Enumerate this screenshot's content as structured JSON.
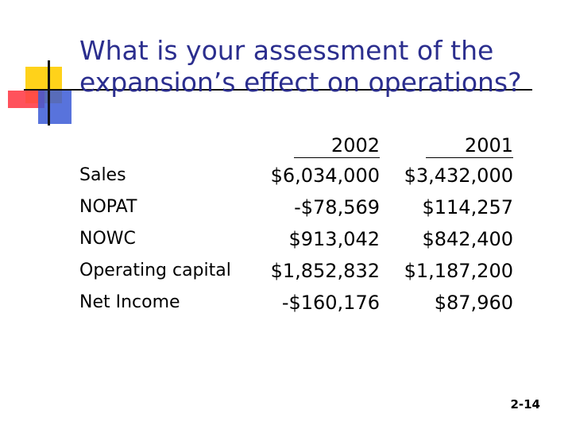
{
  "slide": {
    "title": "What is your assessment of the expansion’s effect on operations?",
    "page_number": "2-14",
    "accent_colors": {
      "title": "#2B2E8E",
      "logo_yellow": "#FFD21A",
      "logo_red": "#FF3F4A",
      "logo_blue": "#3B5BD6"
    }
  },
  "table": {
    "columns": [
      "2002",
      "2001"
    ],
    "rows": [
      {
        "label": "Sales",
        "v2002": "$6,034,000",
        "v2001": "$3,432,000"
      },
      {
        "label": "NOPAT",
        "v2002": "-$78,569",
        "v2001": "$114,257"
      },
      {
        "label": "NOWC",
        "v2002": "$913,042",
        "v2001": "$842,400"
      },
      {
        "label": "Operating capital",
        "v2002": "$1,852,832",
        "v2001": "$1,187,200"
      },
      {
        "label": "Net Income",
        "v2002": "-$160,176",
        "v2001": "$87,960"
      }
    ]
  }
}
